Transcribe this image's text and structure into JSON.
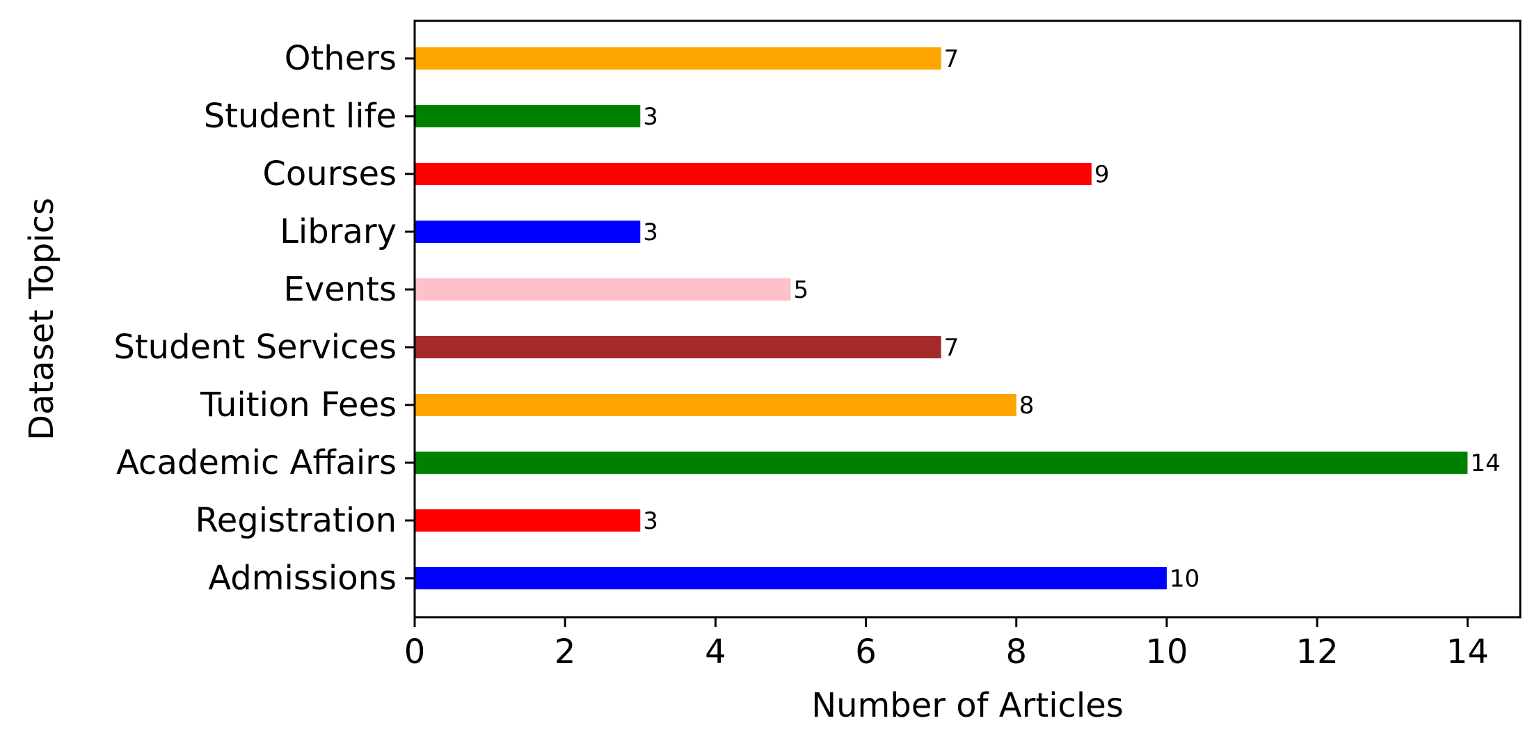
{
  "chart_data": {
    "type": "bar",
    "orientation": "horizontal",
    "categories": [
      "Admissions",
      "Registration",
      "Academic Affairs",
      "Tuition Fees",
      "Student Services",
      "Events",
      "Library",
      "Courses",
      "Student life",
      "Others"
    ],
    "values": [
      10,
      3,
      14,
      8,
      7,
      5,
      3,
      9,
      3,
      7
    ],
    "bar_colors": [
      "#0000ff",
      "#ff0000",
      "#008000",
      "#ffa500",
      "#a52a2a",
      "#ffc0cb",
      "#0000ff",
      "#ff0000",
      "#008000",
      "#ffa500"
    ],
    "data_labels": [
      "10",
      "3",
      "14",
      "8",
      "7",
      "5",
      "3",
      "9",
      "3",
      "7"
    ],
    "xlabel": "Number of Articles",
    "ylabel": "Dataset Topics",
    "xlim": [
      0,
      14.7
    ],
    "xticks": [
      0,
      2,
      4,
      6,
      8,
      10,
      12,
      14
    ],
    "xtick_labels": [
      "0",
      "2",
      "4",
      "6",
      "8",
      "10",
      "12",
      "14"
    ],
    "grid": false,
    "legend": "none"
  }
}
